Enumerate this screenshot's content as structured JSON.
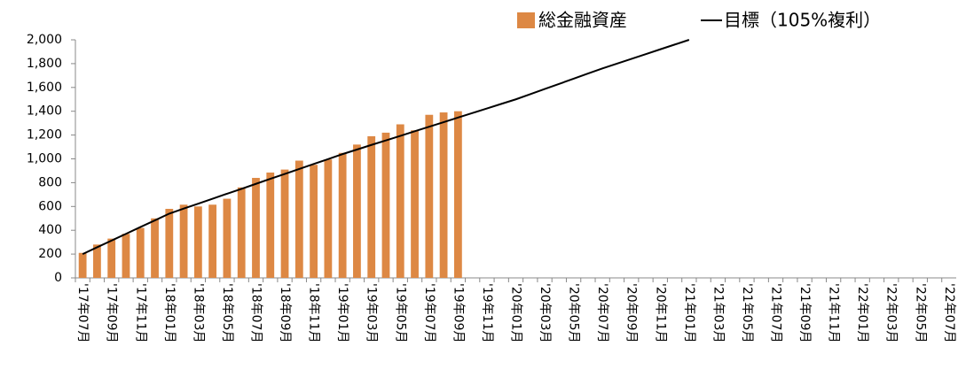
{
  "chart_data": {
    "type": "bar_line",
    "categories": [
      "'17年07月",
      null,
      "'17年09月",
      null,
      "'17年11月",
      null,
      "'18年01月",
      null,
      "'18年03月",
      null,
      "'18年05月",
      null,
      "'18年07月",
      null,
      "'18年09月",
      null,
      "'18年11月",
      null,
      "'19年01月",
      null,
      "'19年03月",
      null,
      "'19年05月",
      null,
      "'19年07月",
      null,
      "'19年09月",
      null,
      "'19年11月",
      null,
      "'20年01月",
      null,
      "'20年03月",
      null,
      "'20年05月",
      null,
      "'20年07月",
      null,
      "'20年09月",
      null,
      "'20年11月",
      null,
      "'21年01月",
      null,
      "'21年03月",
      null,
      "'21年05月",
      null,
      "'21年07月",
      null,
      "'21年09月",
      null,
      "'21年11月",
      null,
      "'22年01月",
      null,
      "'22年03月",
      null,
      "'22年05月",
      null,
      "'22年07月"
    ],
    "series": [
      {
        "name": "総金融資産",
        "type": "bar",
        "color": "#dd8844",
        "values": [
          210,
          280,
          330,
          370,
          420,
          500,
          580,
          615,
          600,
          615,
          665,
          760,
          840,
          885,
          910,
          985,
          950,
          995,
          1050,
          1120,
          1190,
          1220,
          1290,
          1240,
          1370,
          1390,
          1400,
          null,
          null,
          null,
          null,
          null,
          null,
          null,
          null,
          null,
          null,
          null,
          null,
          null,
          null,
          null,
          null,
          null,
          null,
          null,
          null,
          null,
          null,
          null,
          null,
          null,
          null,
          null,
          null,
          null,
          null,
          null,
          null,
          null,
          null
        ]
      },
      {
        "name": "目標（105%複利）",
        "type": "line",
        "color": "#000000",
        "values": [
          200,
          257,
          313,
          370,
          427,
          483,
          540,
          582,
          623,
          665,
          707,
          748,
          790,
          832,
          873,
          915,
          957,
          998,
          1040,
          1078,
          1117,
          1155,
          1193,
          1232,
          1270,
          1308,
          1347,
          1385,
          1423,
          1462,
          1500,
          1543,
          1587,
          1630,
          1673,
          1717,
          1760,
          1800,
          1840,
          1880,
          1920,
          1960,
          2000,
          null,
          null,
          null,
          null,
          null,
          null,
          null,
          null,
          null,
          null,
          null,
          null,
          null,
          null,
          null,
          null,
          null,
          null
        ]
      }
    ],
    "ylim": [
      0,
      2000
    ],
    "yticks": [
      0,
      200,
      400,
      600,
      800,
      {
        "value": 1000,
        "label": "1,000"
      },
      {
        "value": 1200,
        "label": "1,200"
      },
      {
        "value": 1400,
        "label": "1,400"
      },
      {
        "value": 1600,
        "label": "1,600"
      },
      {
        "value": 1800,
        "label": "1,800"
      },
      {
        "value": 2000,
        "label": "2,000"
      }
    ],
    "legend": "top",
    "grid": false
  }
}
